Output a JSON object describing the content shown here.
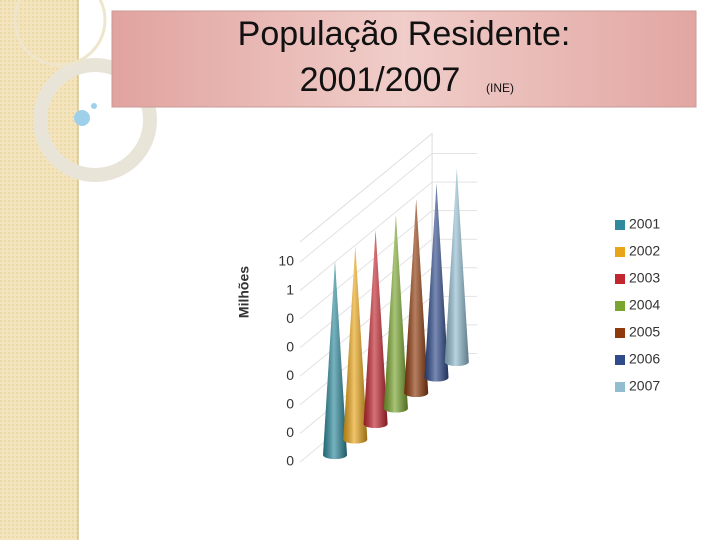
{
  "chart_data": {
    "type": "cone3d",
    "title": "População Residente:",
    "subtitle": "2001/2007",
    "note": "(INE)",
    "y_label": "Milhões",
    "log_scale": true,
    "grid": true,
    "legend": "right",
    "categories": [
      null
    ],
    "series": [
      {
        "name": "2001",
        "color": "#2e8a9c",
        "values": [
          10.36
        ]
      },
      {
        "name": "2002",
        "color": "#e9a51a",
        "values": [
          10.41
        ]
      },
      {
        "name": "2003",
        "color": "#c1272f",
        "values": [
          10.44
        ]
      },
      {
        "name": "2004",
        "color": "#7aa52f",
        "values": [
          10.47
        ]
      },
      {
        "name": "2005",
        "color": "#8e3a0c",
        "values": [
          10.53
        ]
      },
      {
        "name": "2006",
        "color": "#2f4b8a",
        "values": [
          10.57
        ]
      },
      {
        "name": "2007",
        "color": "#92bcd0",
        "values": [
          10.6
        ]
      }
    ],
    "ylim": [
      1e-06,
      10
    ],
    "yticks": [
      {
        "value": 1e-06,
        "label": "0"
      },
      {
        "value": 1e-05,
        "label": "0"
      },
      {
        "value": 0.0001,
        "label": "0"
      },
      {
        "value": 0.001,
        "label": "0"
      },
      {
        "value": 0.01,
        "label": "0"
      },
      {
        "value": 0.1,
        "label": "0"
      },
      1,
      10
    ]
  }
}
